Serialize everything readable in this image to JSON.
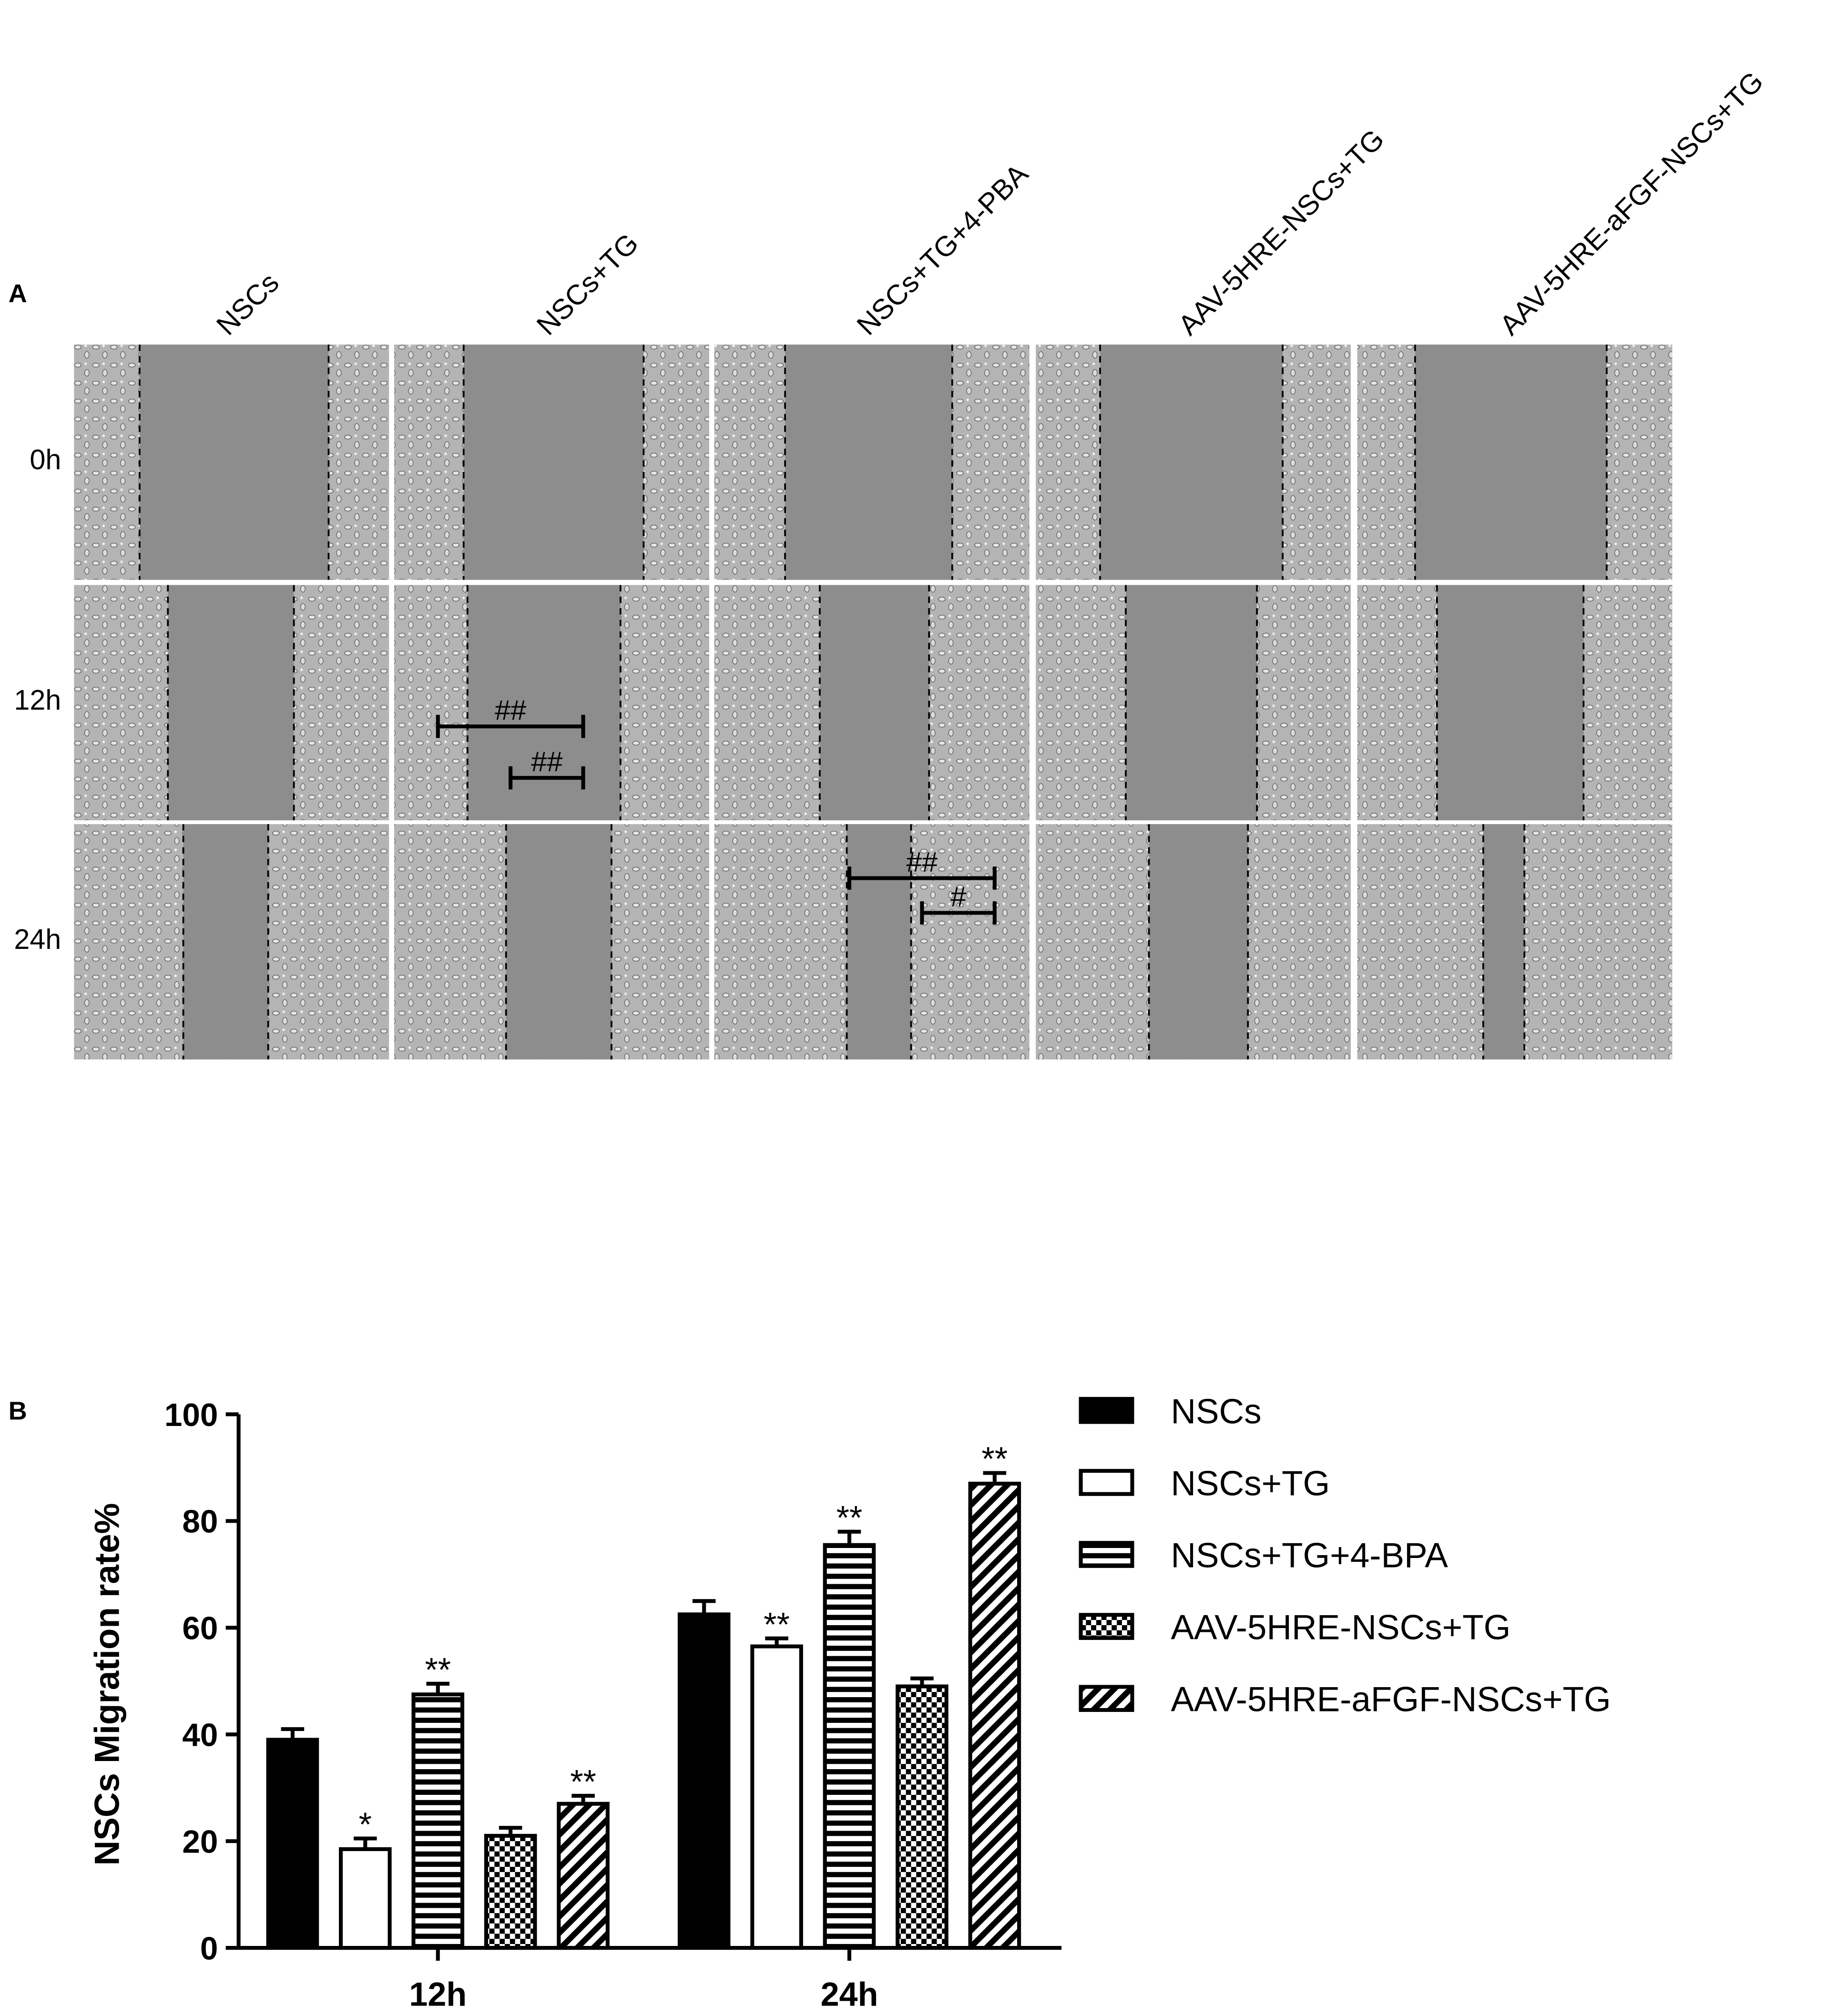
{
  "panel_a": {
    "label": "A",
    "columns": [
      "NSCs",
      "NSCs+TG",
      "NSCs+TG+4-PBA",
      "AAV-5HRE-NSCs+TG",
      "AAV-5HRE-aFGF-NSCs+TG"
    ],
    "rows": [
      "0h",
      "12h",
      "24h"
    ]
  },
  "chart_data": {
    "type": "bar",
    "panel_label": "B",
    "ylabel": "NSCs Migration rate%",
    "categories": [
      "12h",
      "24h"
    ],
    "ylim": [
      0,
      100
    ],
    "yticks": [
      0,
      20,
      40,
      60,
      80,
      100
    ],
    "series": [
      {
        "name": "NSCs",
        "color": "#000000",
        "pattern": "solid",
        "values": [
          39,
          62.5
        ],
        "errors": [
          2,
          2.5
        ],
        "annotations": [
          null,
          null
        ]
      },
      {
        "name": "NSCs+TG",
        "color": "#000000",
        "pattern": "none",
        "values": [
          18.5,
          56.5
        ],
        "errors": [
          2,
          1.5
        ],
        "annotations": [
          "*",
          "**"
        ]
      },
      {
        "name": "NSCs+TG+4-BPA",
        "color": "#000000",
        "pattern": "horizontal",
        "values": [
          47.5,
          75.5
        ],
        "errors": [
          2,
          2.5
        ],
        "annotations": [
          "**",
          "**"
        ]
      },
      {
        "name": "AAV-5HRE-NSCs+TG",
        "color": "#000000",
        "pattern": "checker",
        "values": [
          21,
          49
        ],
        "errors": [
          1.5,
          1.5
        ],
        "annotations": [
          null,
          null
        ]
      },
      {
        "name": "AAV-5HRE-aFGF-NSCs+TG",
        "color": "#000000",
        "pattern": "diagonal",
        "values": [
          27,
          87
        ],
        "errors": [
          1.5,
          2
        ],
        "annotations": [
          "**",
          "**"
        ]
      }
    ],
    "significance": [
      [
        "##",
        "##"
      ],
      [
        "##",
        "#"
      ]
    ]
  }
}
